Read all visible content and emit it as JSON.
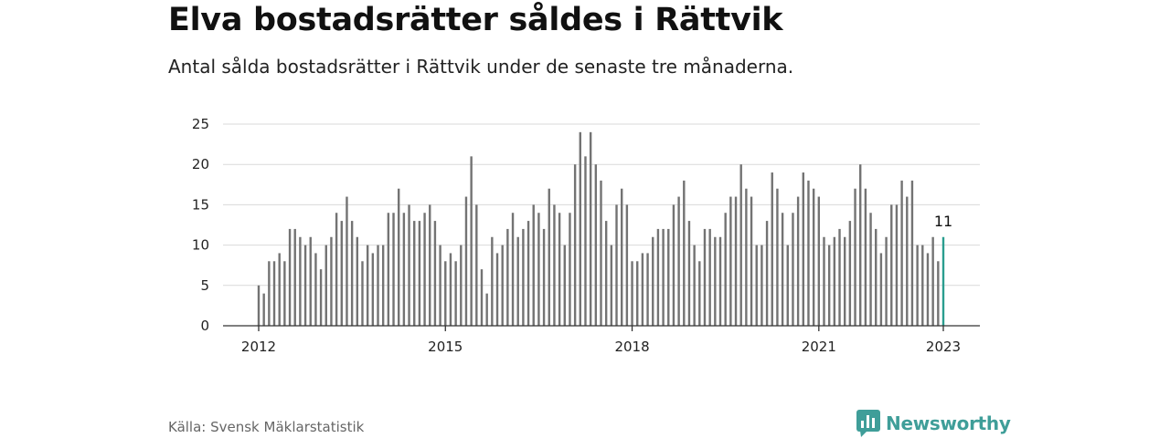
{
  "header": {
    "title": "Elva bostadsrätter såldes i Rättvik",
    "subtitle": "Antal sålda bostadsrätter i Rättvik under de senaste tre månaderna."
  },
  "footer": {
    "source": "Källa: Svensk Mäklarstatistik",
    "brand": "Newsworthy"
  },
  "colors": {
    "bar": "#737373",
    "highlight": "#2a9d8f",
    "grid": "#d9d9d9",
    "axis": "#333333",
    "brand": "#3f9e99"
  },
  "chart_data": {
    "type": "bar",
    "title": "Elva bostadsrätter såldes i Rättvik",
    "subtitle": "Antal sålda bostadsrätter i Rättvik under de senaste tre månaderna.",
    "xlabel": "",
    "ylabel": "",
    "ylim": [
      0,
      25
    ],
    "yticks": [
      "0",
      "5",
      "10",
      "15",
      "20",
      "25"
    ],
    "x_start": "2012-01",
    "x_end": "2023-01",
    "xticks": [
      {
        "label": "2012",
        "month": "2012-01"
      },
      {
        "label": "2015",
        "month": "2015-01"
      },
      {
        "label": "2018",
        "month": "2018-01"
      },
      {
        "label": "2021",
        "month": "2021-01"
      },
      {
        "label": "2023",
        "month": "2023-01"
      }
    ],
    "grid": true,
    "highlight_last": true,
    "last_value_label": "11",
    "values": [
      5,
      4,
      8,
      8,
      9,
      8,
      12,
      12,
      11,
      10,
      11,
      9,
      7,
      10,
      11,
      14,
      13,
      16,
      13,
      11,
      8,
      10,
      9,
      10,
      10,
      14,
      14,
      17,
      14,
      15,
      13,
      13,
      14,
      15,
      13,
      10,
      8,
      9,
      8,
      10,
      16,
      21,
      15,
      7,
      4,
      11,
      9,
      10,
      12,
      14,
      11,
      12,
      13,
      15,
      14,
      12,
      17,
      15,
      14,
      10,
      14,
      20,
      24,
      21,
      24,
      20,
      18,
      13,
      10,
      15,
      17,
      15,
      8,
      8,
      9,
      9,
      11,
      12,
      12,
      12,
      15,
      16,
      18,
      13,
      10,
      8,
      12,
      12,
      11,
      11,
      14,
      16,
      16,
      20,
      17,
      16,
      10,
      10,
      13,
      19,
      17,
      14,
      10,
      14,
      16,
      19,
      18,
      17,
      16,
      11,
      10,
      11,
      12,
      11,
      13,
      17,
      20,
      17,
      14,
      12,
      9,
      11,
      15,
      15,
      18,
      16,
      18,
      10,
      10,
      9,
      11,
      8,
      11
    ]
  }
}
